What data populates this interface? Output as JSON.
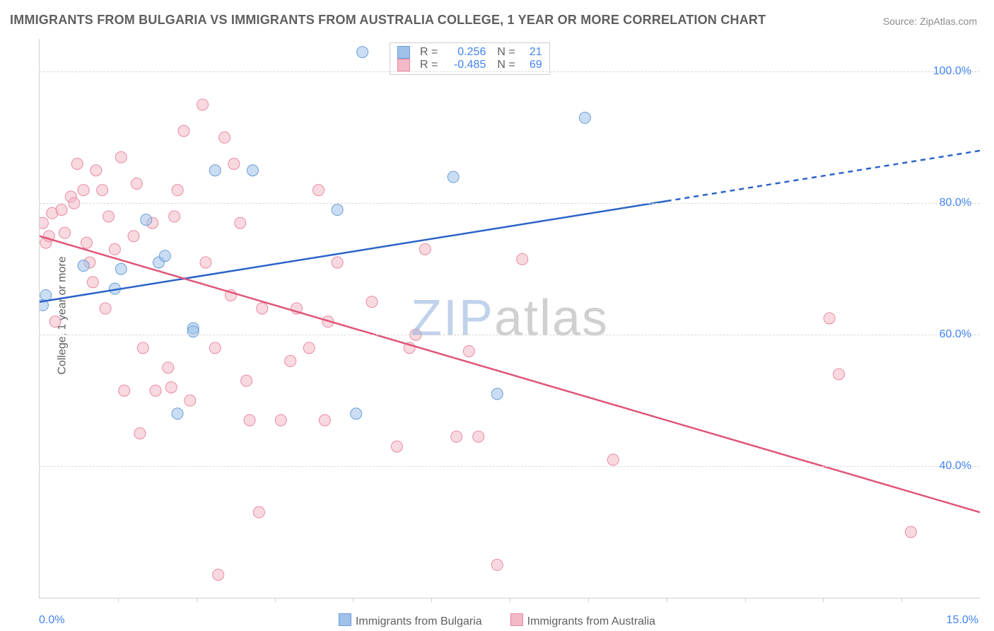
{
  "title": "IMMIGRANTS FROM BULGARIA VS IMMIGRANTS FROM AUSTRALIA COLLEGE, 1 YEAR OR MORE CORRELATION CHART",
  "source_label": "Source: ZipAtlas.com",
  "ylabel": "College, 1 year or more",
  "watermark_zip": "ZIP",
  "watermark_rest": "atlas",
  "chart": {
    "type": "scatter",
    "background_color": "#ffffff",
    "grid_color": "#d8d8d8",
    "axis_color": "#cfcfcf",
    "title_color": "#5f5f5f",
    "label_color": "#5f5f5f",
    "tick_color": "#4285f4",
    "title_fontsize": 18,
    "label_fontsize": 16,
    "xlim": [
      0.0,
      15.0
    ],
    "ylim": [
      20.0,
      105.0
    ],
    "xticks": [
      0.0,
      15.0
    ],
    "xtick_labels": [
      "0.0%",
      "15.0%"
    ],
    "xminor": [
      1.25,
      2.5,
      3.75,
      5.0,
      6.25,
      7.5,
      8.75,
      10.0,
      11.25,
      12.5,
      13.75
    ],
    "yticks": [
      40.0,
      60.0,
      80.0,
      100.0
    ],
    "ytick_labels": [
      "40.0%",
      "60.0%",
      "80.0%",
      "100.0%"
    ],
    "point_radius": 8,
    "point_opacity": 0.55,
    "line_width": 2.5
  },
  "series": [
    {
      "id": "bulgaria",
      "name": "Immigrants from Bulgaria",
      "color_fill": "#9fc1ea",
      "color_stroke": "#6b9ed6",
      "line_color": "#2a63c8",
      "R": "0.256",
      "N": "21",
      "trend": {
        "x1": 0.0,
        "y1": 65.0,
        "x2": 15.0,
        "y2": 88.0,
        "solid_until_x": 10.0
      },
      "points": [
        [
          0.05,
          64.5
        ],
        [
          0.1,
          66.0
        ],
        [
          0.7,
          70.5
        ],
        [
          1.2,
          67.0
        ],
        [
          1.3,
          70.0
        ],
        [
          1.7,
          77.5
        ],
        [
          1.9,
          71.0
        ],
        [
          2.0,
          72.0
        ],
        [
          2.2,
          48.0
        ],
        [
          2.45,
          61.0
        ],
        [
          2.8,
          85.0
        ],
        [
          3.4,
          85.0
        ],
        [
          2.45,
          60.5
        ],
        [
          4.75,
          79.0
        ],
        [
          5.05,
          48.0
        ],
        [
          5.15,
          103.0
        ],
        [
          6.6,
          84.0
        ],
        [
          7.3,
          51.0
        ],
        [
          8.7,
          93.0
        ]
      ]
    },
    {
      "id": "australia",
      "name": "Immigrants from Australia",
      "color_fill": "#f4b9c7",
      "color_stroke": "#e88aa1",
      "line_color": "#e05578",
      "R": "-0.485",
      "N": "69",
      "trend": {
        "x1": 0.0,
        "y1": 75.0,
        "x2": 15.0,
        "y2": 33.0,
        "solid_until_x": 15.0
      },
      "points": [
        [
          0.05,
          77.0
        ],
        [
          0.1,
          74.0
        ],
        [
          0.15,
          75.0
        ],
        [
          0.2,
          78.5
        ],
        [
          0.25,
          62.0
        ],
        [
          0.35,
          79.0
        ],
        [
          0.4,
          75.5
        ],
        [
          0.5,
          81.0
        ],
        [
          0.55,
          80.0
        ],
        [
          0.6,
          86.0
        ],
        [
          0.7,
          82.0
        ],
        [
          0.75,
          74.0
        ],
        [
          0.8,
          71.0
        ],
        [
          0.85,
          68.0
        ],
        [
          0.9,
          85.0
        ],
        [
          1.0,
          82.0
        ],
        [
          1.05,
          64.0
        ],
        [
          1.1,
          78.0
        ],
        [
          1.2,
          73.0
        ],
        [
          1.3,
          87.0
        ],
        [
          1.35,
          51.5
        ],
        [
          1.5,
          75.0
        ],
        [
          1.55,
          83.0
        ],
        [
          1.6,
          45.0
        ],
        [
          1.65,
          58.0
        ],
        [
          1.8,
          77.0
        ],
        [
          1.85,
          51.5
        ],
        [
          2.05,
          55.0
        ],
        [
          2.1,
          52.0
        ],
        [
          2.15,
          78.0
        ],
        [
          2.2,
          82.0
        ],
        [
          2.3,
          91.0
        ],
        [
          2.4,
          50.0
        ],
        [
          2.6,
          95.0
        ],
        [
          2.65,
          71.0
        ],
        [
          2.8,
          58.0
        ],
        [
          2.95,
          90.0
        ],
        [
          2.85,
          23.5
        ],
        [
          3.05,
          66.0
        ],
        [
          3.1,
          86.0
        ],
        [
          3.2,
          77.0
        ],
        [
          3.3,
          53.0
        ],
        [
          3.35,
          47.0
        ],
        [
          3.5,
          33.0
        ],
        [
          3.55,
          64.0
        ],
        [
          3.85,
          47.0
        ],
        [
          4.0,
          56.0
        ],
        [
          4.1,
          64.0
        ],
        [
          4.3,
          58.0
        ],
        [
          4.45,
          82.0
        ],
        [
          4.55,
          47.0
        ],
        [
          4.6,
          62.0
        ],
        [
          4.75,
          71.0
        ],
        [
          5.3,
          65.0
        ],
        [
          5.7,
          43.0
        ],
        [
          5.9,
          58.0
        ],
        [
          6.0,
          60.0
        ],
        [
          6.15,
          73.0
        ],
        [
          6.65,
          44.5
        ],
        [
          6.85,
          57.5
        ],
        [
          7.0,
          44.5
        ],
        [
          7.3,
          25.0
        ],
        [
          7.7,
          71.5
        ],
        [
          9.15,
          41.0
        ],
        [
          12.6,
          62.5
        ],
        [
          12.75,
          54.0
        ],
        [
          13.9,
          30.0
        ]
      ]
    }
  ],
  "legend_top": {
    "rows": [
      {
        "series": "bulgaria",
        "R_label": "R =",
        "R": "0.256",
        "N_label": "N =",
        "N": "21"
      },
      {
        "series": "australia",
        "R_label": "R =",
        "R": "-0.485",
        "N_label": "N =",
        "N": "69"
      }
    ]
  },
  "legend_bottom": {
    "items": [
      {
        "series": "bulgaria",
        "label": "Immigrants from Bulgaria"
      },
      {
        "series": "australia",
        "label": "Immigrants from Australia"
      }
    ]
  }
}
